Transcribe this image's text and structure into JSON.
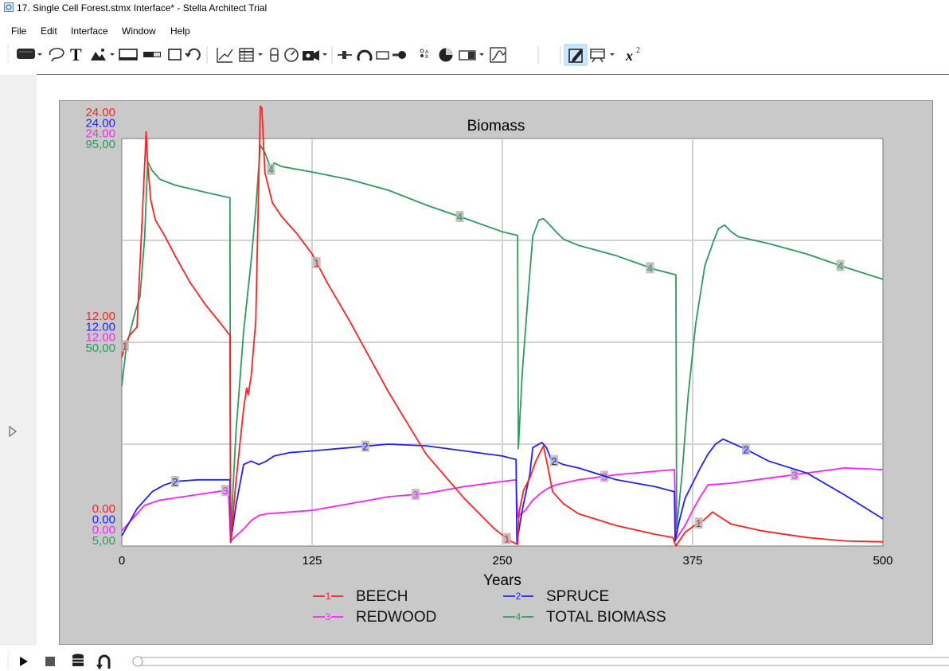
{
  "window": {
    "title": "17. Single Cell Forest.stmx Interface* - Stella Architect Trial",
    "app_icon": "stella-app-icon"
  },
  "menu": [
    "File",
    "Edit",
    "Interface",
    "Window",
    "Help"
  ],
  "toolbar": {
    "tools": [
      "stock-button-icon",
      "dropdown-arrow-icon",
      "lasso-icon",
      "text-tool-icon",
      "image-tool-icon",
      "dropdown-arrow-icon",
      "slider-tool-icon",
      "switch-tool-icon",
      "panel-tool-icon",
      "refresh-tool-icon",
      "graph-tool-icon",
      "table-tool-icon",
      "dropdown-arrow-icon",
      "numeric-display-icon",
      "gauge-tool-icon",
      "animation-tool-icon",
      "dropdown-arrow-icon",
      "connector-tool-icon",
      "knob-tool-icon",
      "input-box-icon",
      "toggle-tool-icon",
      "radio-group-icon",
      "pie-tool-icon",
      "list-input-icon",
      "dropdown-arrow-icon",
      "graphical-input-icon",
      "edit-mode-icon",
      "presentation-icon",
      "dropdown-arrow-icon",
      "equation-icon"
    ],
    "equation_label": "x",
    "equation_sup": "2"
  },
  "chart_data": {
    "type": "line",
    "title": "Biomass",
    "xlabel": "Years",
    "xlim": [
      0,
      500
    ],
    "x_ticks": [
      "0",
      "125",
      "250",
      "375",
      "500"
    ],
    "x_tick_values": [
      0,
      125,
      250,
      375,
      500
    ],
    "grid": true,
    "legend_placement": "bottom",
    "y_scales": [
      {
        "series": "BEECH",
        "color": "#ff2020",
        "top": "24.00",
        "mid": "12.00",
        "bottom": "0.00"
      },
      {
        "series": "SPRUCE",
        "color": "#2020ff",
        "top": "24.00",
        "mid": "12.00",
        "bottom": "0.00"
      },
      {
        "series": "REDWOOD",
        "color": "#ff20ff",
        "top": "24.00",
        "mid": "12.00",
        "bottom": "0.00"
      },
      {
        "series": "TOTAL BIOMASS",
        "color": "#2e9a5c",
        "top": "95,00",
        "mid": "50,00",
        "bottom": "5,00"
      }
    ],
    "series": [
      {
        "id": "1",
        "name": "BEECH",
        "color": "#ff2020",
        "ymin": 0,
        "ymax": 24,
        "marker_x": [
          2,
          128,
          253,
          379
        ],
        "points": [
          [
            0,
            11.1
          ],
          [
            2,
            11.8
          ],
          [
            5,
            12.4
          ],
          [
            10,
            12.9
          ],
          [
            13,
            18.6
          ],
          [
            16,
            24.4
          ],
          [
            17,
            22.5
          ],
          [
            19,
            20.4
          ],
          [
            22,
            19.2
          ],
          [
            28,
            18.3
          ],
          [
            35,
            17.1
          ],
          [
            45,
            15.5
          ],
          [
            55,
            14.2
          ],
          [
            65,
            13.1
          ],
          [
            71,
            12.4
          ],
          [
            71.5,
            0.2
          ],
          [
            75,
            3.8
          ],
          [
            80,
            8.1
          ],
          [
            82,
            9.3
          ],
          [
            83,
            8.9
          ],
          [
            85,
            10.0
          ],
          [
            88,
            13.3
          ],
          [
            91,
            25.9
          ],
          [
            92,
            25.8
          ],
          [
            94,
            22.0
          ],
          [
            99,
            20.2
          ],
          [
            105,
            19.4
          ],
          [
            115,
            18.4
          ],
          [
            125,
            17.2
          ],
          [
            135,
            15.5
          ],
          [
            150,
            13.2
          ],
          [
            175,
            9.1
          ],
          [
            200,
            5.4
          ],
          [
            225,
            2.8
          ],
          [
            245,
            1.0
          ],
          [
            255,
            0.3
          ],
          [
            260,
            0.1
          ],
          [
            261,
            2.0
          ],
          [
            264,
            3.3
          ],
          [
            268,
            4.0
          ],
          [
            272,
            5.0
          ],
          [
            277,
            5.9
          ],
          [
            280,
            4.6
          ],
          [
            283,
            3.2
          ],
          [
            290,
            2.5
          ],
          [
            300,
            1.9
          ],
          [
            325,
            1.2
          ],
          [
            350,
            0.7
          ],
          [
            362,
            0.5
          ],
          [
            364,
            0.0
          ],
          [
            370,
            0.8
          ],
          [
            376,
            1.2
          ],
          [
            382,
            1.5
          ],
          [
            388,
            2.0
          ],
          [
            395,
            1.6
          ],
          [
            400,
            1.3
          ],
          [
            420,
            0.9
          ],
          [
            450,
            0.5
          ],
          [
            475,
            0.3
          ],
          [
            500,
            0.25
          ]
        ]
      },
      {
        "id": "2",
        "name": "SPRUCE",
        "color": "#2020ff",
        "ymin": 0,
        "ymax": 24,
        "marker_x": [
          35,
          160,
          284,
          410
        ],
        "points": [
          [
            0,
            0.6
          ],
          [
            5,
            1.4
          ],
          [
            10,
            2.2
          ],
          [
            15,
            2.7
          ],
          [
            20,
            3.2
          ],
          [
            28,
            3.6
          ],
          [
            35,
            3.8
          ],
          [
            50,
            3.9
          ],
          [
            71,
            3.9
          ],
          [
            71.5,
            0.2
          ],
          [
            75,
            2.4
          ],
          [
            80,
            4.8
          ],
          [
            85,
            5.0
          ],
          [
            90,
            4.8
          ],
          [
            95,
            5.0
          ],
          [
            100,
            5.3
          ],
          [
            110,
            5.5
          ],
          [
            125,
            5.6
          ],
          [
            150,
            5.8
          ],
          [
            175,
            6.0
          ],
          [
            200,
            5.9
          ],
          [
            225,
            5.6
          ],
          [
            250,
            5.3
          ],
          [
            259,
            5.1
          ],
          [
            259.5,
            0.2
          ],
          [
            263,
            2.1
          ],
          [
            268,
            4.2
          ],
          [
            270,
            5.8
          ],
          [
            276,
            6.1
          ],
          [
            279,
            5.8
          ],
          [
            282,
            5.1
          ],
          [
            290,
            4.8
          ],
          [
            300,
            4.6
          ],
          [
            325,
            3.9
          ],
          [
            350,
            3.5
          ],
          [
            363,
            3.2
          ],
          [
            363.5,
            0.3
          ],
          [
            366,
            1.4
          ],
          [
            370,
            2.8
          ],
          [
            375,
            3.7
          ],
          [
            380,
            4.6
          ],
          [
            385,
            5.4
          ],
          [
            390,
            6.0
          ],
          [
            395,
            6.3
          ],
          [
            400,
            6.1
          ],
          [
            410,
            5.7
          ],
          [
            425,
            5.0
          ],
          [
            450,
            4.3
          ],
          [
            475,
            3.0
          ],
          [
            500,
            1.6
          ]
        ]
      },
      {
        "id": "3",
        "name": "REDWOOD",
        "color": "#ff20ff",
        "ymin": 0,
        "ymax": 24,
        "marker_x": [
          68,
          193,
          317,
          442
        ],
        "points": [
          [
            0,
            0.9
          ],
          [
            5,
            1.4
          ],
          [
            10,
            1.9
          ],
          [
            15,
            2.4
          ],
          [
            25,
            2.7
          ],
          [
            40,
            2.9
          ],
          [
            55,
            3.1
          ],
          [
            70,
            3.3
          ],
          [
            71.5,
            0.3
          ],
          [
            75,
            0.6
          ],
          [
            80,
            1.0
          ],
          [
            85,
            1.5
          ],
          [
            90,
            1.8
          ],
          [
            95,
            1.9
          ],
          [
            125,
            2.1
          ],
          [
            150,
            2.5
          ],
          [
            175,
            2.9
          ],
          [
            200,
            3.1
          ],
          [
            225,
            3.5
          ],
          [
            250,
            3.8
          ],
          [
            259,
            3.9
          ],
          [
            260,
            1.7
          ],
          [
            265,
            2.1
          ],
          [
            270,
            2.7
          ],
          [
            275,
            3.1
          ],
          [
            280,
            3.4
          ],
          [
            285,
            3.6
          ],
          [
            300,
            3.9
          ],
          [
            325,
            4.2
          ],
          [
            350,
            4.4
          ],
          [
            363,
            4.5
          ],
          [
            364,
            0.4
          ],
          [
            370,
            1.2
          ],
          [
            375,
            2.1
          ],
          [
            380,
            2.9
          ],
          [
            385,
            3.6
          ],
          [
            400,
            3.7
          ],
          [
            425,
            4.0
          ],
          [
            450,
            4.3
          ],
          [
            475,
            4.6
          ],
          [
            500,
            4.5
          ]
        ]
      },
      {
        "id": "4",
        "name": "TOTAL BIOMASS",
        "color": "#2e9a5c",
        "ymin": 5,
        "ymax": 95,
        "marker_x": [
          98,
          222,
          347,
          472
        ],
        "points": [
          [
            0,
            40.4
          ],
          [
            3,
            49.0
          ],
          [
            8,
            55.7
          ],
          [
            12,
            60.2
          ],
          [
            15,
            73.1
          ],
          [
            17,
            89.9
          ],
          [
            20,
            87.9
          ],
          [
            25,
            86.0
          ],
          [
            35,
            84.7
          ],
          [
            50,
            83.5
          ],
          [
            71,
            81.9
          ],
          [
            71.5,
            7.4
          ],
          [
            75,
            30.2
          ],
          [
            80,
            52.4
          ],
          [
            85,
            68.0
          ],
          [
            88,
            79.5
          ],
          [
            91,
            93.5
          ],
          [
            94,
            91.9
          ],
          [
            98,
            88.2
          ],
          [
            100,
            89.6
          ],
          [
            105,
            88.8
          ],
          [
            125,
            87.6
          ],
          [
            150,
            85.9
          ],
          [
            175,
            83.6
          ],
          [
            200,
            80.3
          ],
          [
            225,
            77.4
          ],
          [
            250,
            74.4
          ],
          [
            260,
            73.6
          ],
          [
            260.5,
            26.5
          ],
          [
            263,
            43.0
          ],
          [
            267,
            60.9
          ],
          [
            270,
            73.4
          ],
          [
            274,
            77.0
          ],
          [
            277,
            77.3
          ],
          [
            280,
            76.3
          ],
          [
            285,
            74.5
          ],
          [
            290,
            72.8
          ],
          [
            300,
            71.4
          ],
          [
            325,
            69.1
          ],
          [
            350,
            66.1
          ],
          [
            364,
            64.9
          ],
          [
            364.5,
            8.9
          ],
          [
            368,
            20.7
          ],
          [
            372,
            38.2
          ],
          [
            377,
            54.0
          ],
          [
            383,
            66.9
          ],
          [
            389,
            72.6
          ],
          [
            392,
            75.1
          ],
          [
            396,
            75.9
          ],
          [
            400,
            74.5
          ],
          [
            405,
            73.3
          ],
          [
            425,
            71.8
          ],
          [
            450,
            69.5
          ],
          [
            475,
            66.6
          ],
          [
            500,
            63.9
          ]
        ]
      }
    ]
  }
}
